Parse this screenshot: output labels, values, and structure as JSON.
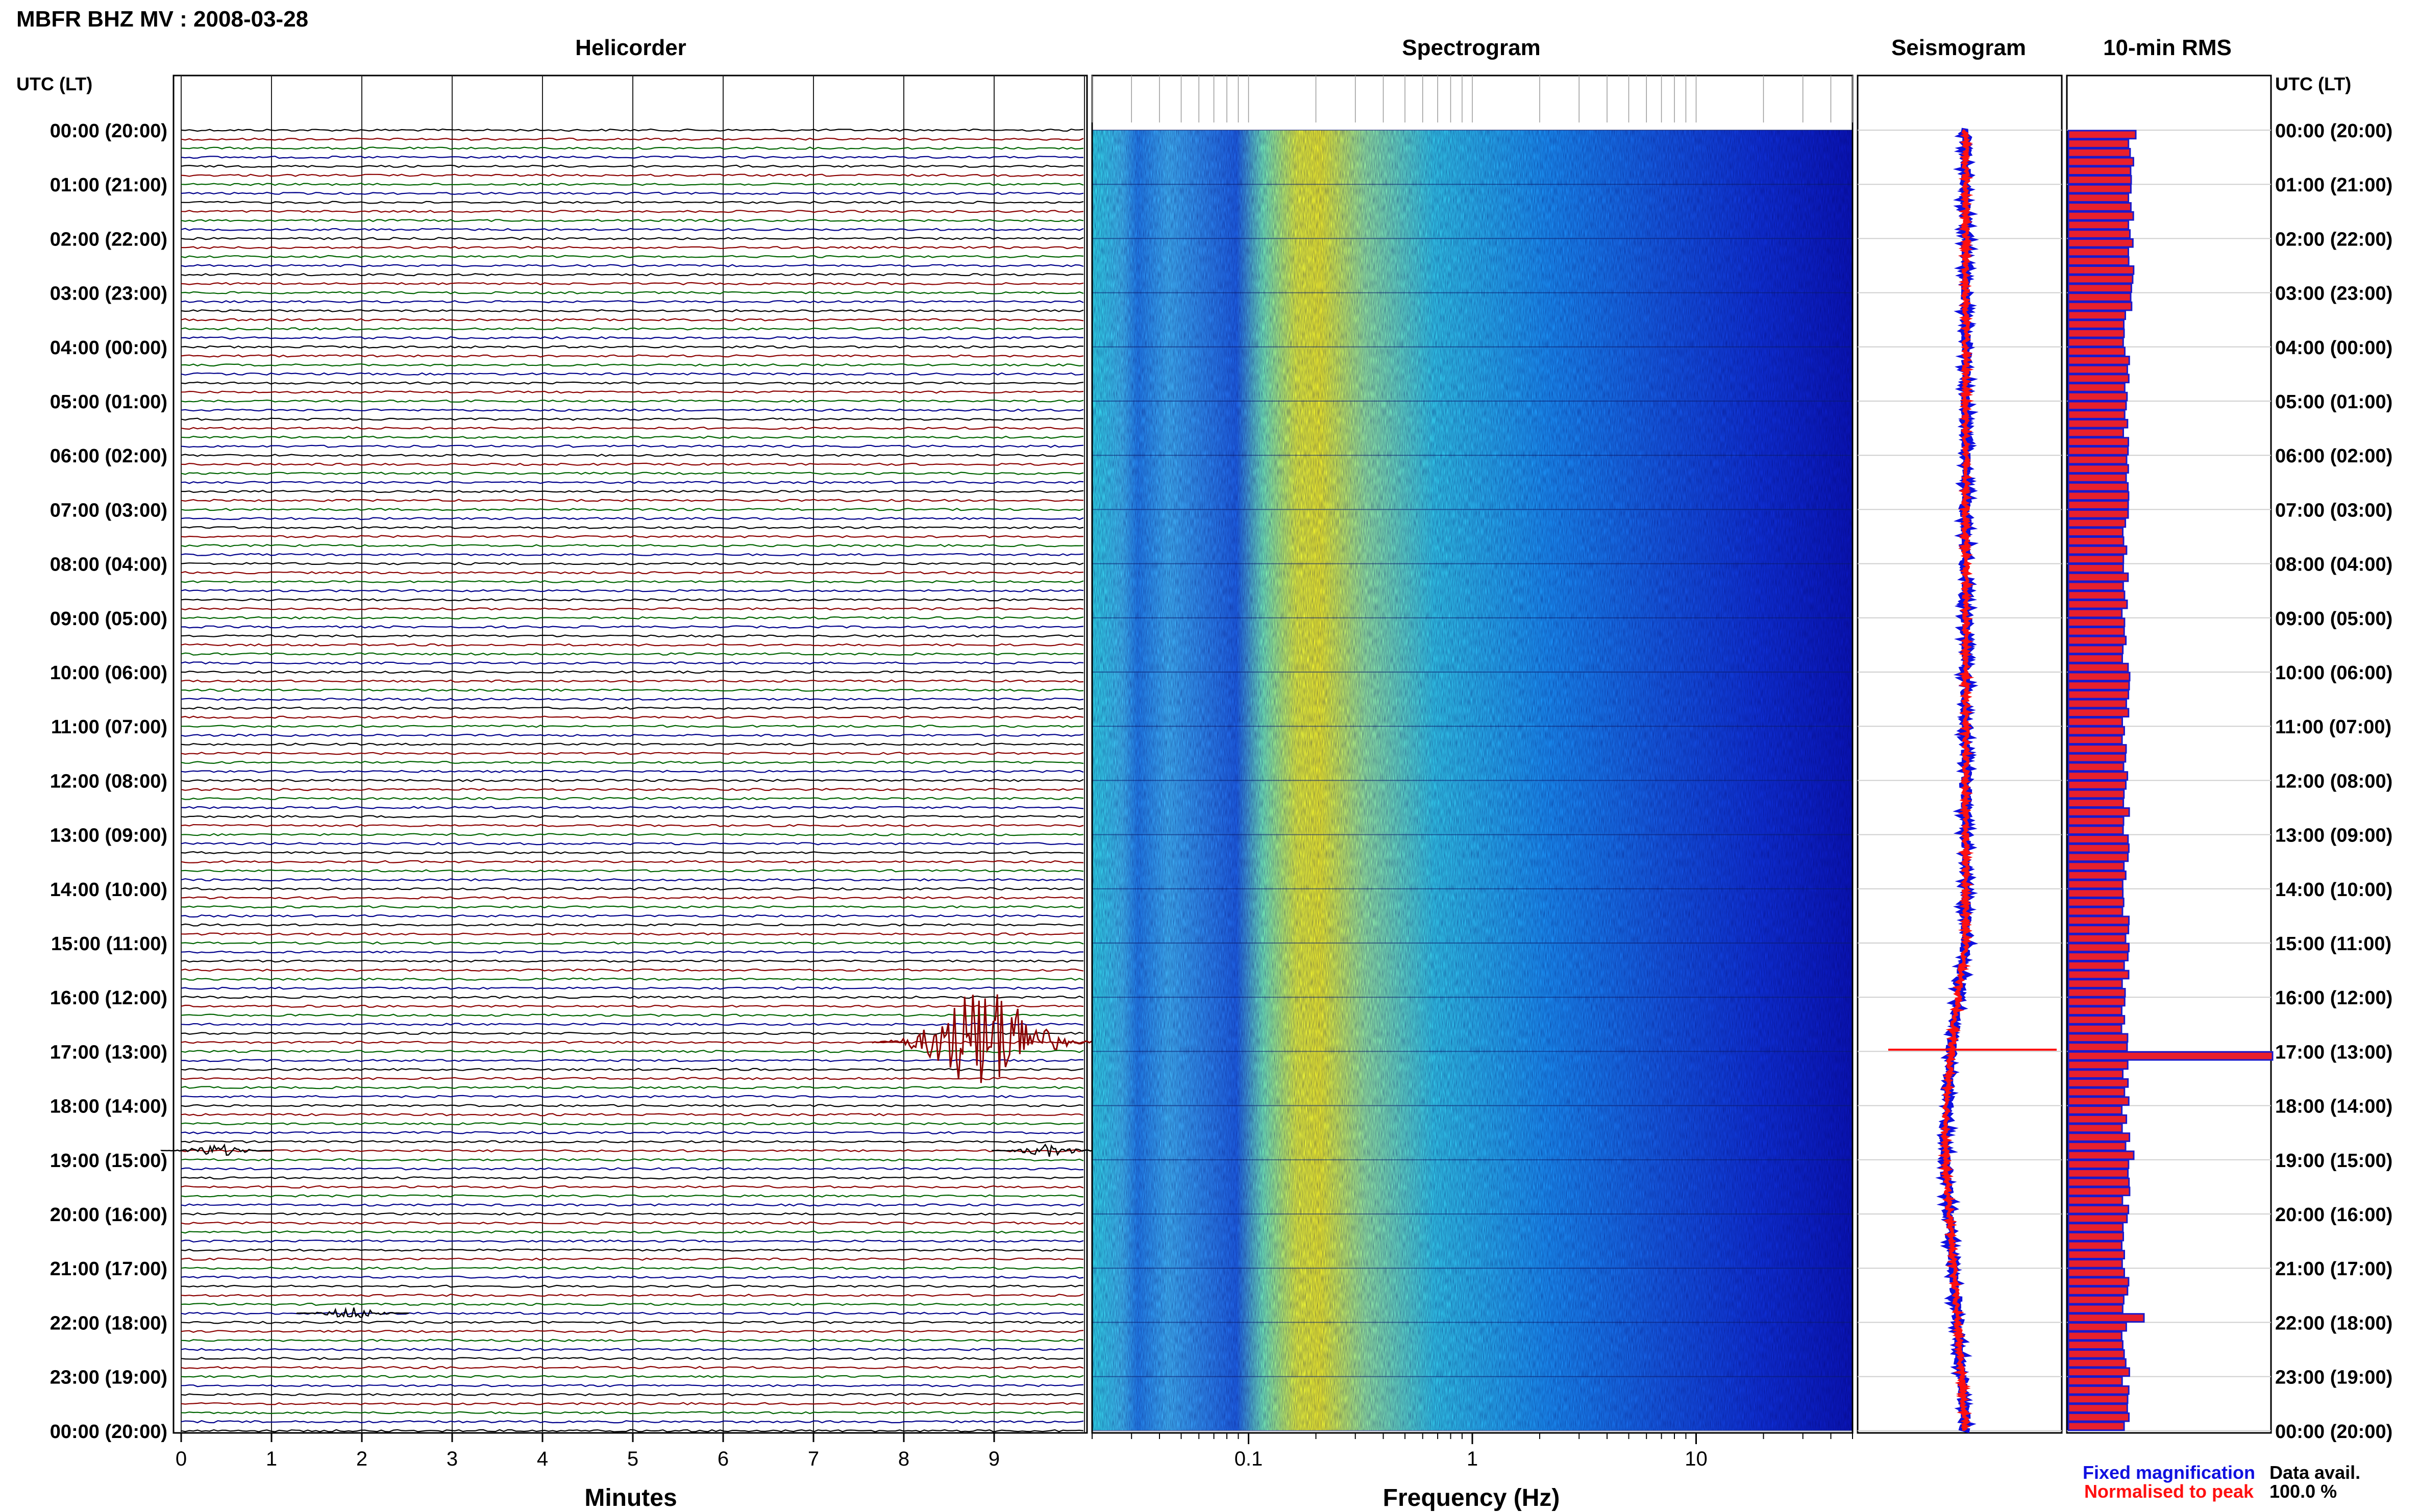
{
  "header": {
    "title": "MBFR BHZ MV : 2008-03-28"
  },
  "panels": {
    "helicorder": "Helicorder",
    "spectrogram": "Spectrogram",
    "seismogram": "Seismogram",
    "rms": "10-min RMS"
  },
  "time_axis_label": "UTC (LT)",
  "time_labels": [
    "00:00 (20:00)",
    "01:00 (21:00)",
    "02:00 (22:00)",
    "03:00 (23:00)",
    "04:00 (00:00)",
    "05:00 (01:00)",
    "06:00 (02:00)",
    "07:00 (03:00)",
    "08:00 (04:00)",
    "09:00 (05:00)",
    "10:00 (06:00)",
    "11:00 (07:00)",
    "12:00 (08:00)",
    "13:00 (09:00)",
    "14:00 (10:00)",
    "15:00 (11:00)",
    "16:00 (12:00)",
    "17:00 (13:00)",
    "18:00 (14:00)",
    "19:00 (15:00)",
    "20:00 (16:00)",
    "21:00 (17:00)",
    "22:00 (18:00)",
    "23:00 (19:00)",
    "00:00 (20:00)"
  ],
  "legend": {
    "fixed": "Fixed magnification",
    "normalised": "Normalised to peak",
    "fixed_color": "#1010e0",
    "normalised_color": "#ff1010"
  },
  "data_avail": {
    "label": "Data avail.",
    "value": "100.0 %"
  },
  "colors": {
    "trace_cycle": [
      "#000000",
      "#8b0000",
      "#006400",
      "#00008b"
    ],
    "rms_fill": "#e8202c",
    "rms_edge": "#1a1acc"
  },
  "chart_data": [
    {
      "type": "line",
      "title": "Helicorder",
      "xlabel": "Minutes",
      "xticks": [
        "0",
        "1",
        "2",
        "3",
        "4",
        "5",
        "6",
        "7",
        "8",
        "9"
      ],
      "xlim": [
        0,
        10
      ],
      "ylim_hours": [
        0,
        24
      ],
      "lines_per_hour": 6,
      "events": [
        {
          "hour": 16.83,
          "minute": 8.9,
          "note": "largest event"
        },
        {
          "hour": 21.83,
          "minute": 1.9
        },
        {
          "hour": 18.83,
          "minute": 9.6
        },
        {
          "hour": 18.83,
          "minute": 0.4
        }
      ]
    },
    {
      "type": "heatmap",
      "title": "Spectrogram",
      "xlabel": "Frequency (Hz)",
      "xscale": "log",
      "xlim": [
        0.02,
        50
      ],
      "xticks": [
        "0.1",
        "1",
        "10"
      ],
      "peak_frequency_hz": 0.2
    },
    {
      "type": "line",
      "title": "Seismogram",
      "series": [
        {
          "name": "Fixed magnification"
        },
        {
          "name": "Normalised to peak"
        }
      ]
    },
    {
      "type": "bar",
      "title": "10-min RMS",
      "bins_per_hour": 6,
      "baseline": 0.28,
      "peak": {
        "hour": 17.0,
        "value": 1.0
      }
    }
  ]
}
